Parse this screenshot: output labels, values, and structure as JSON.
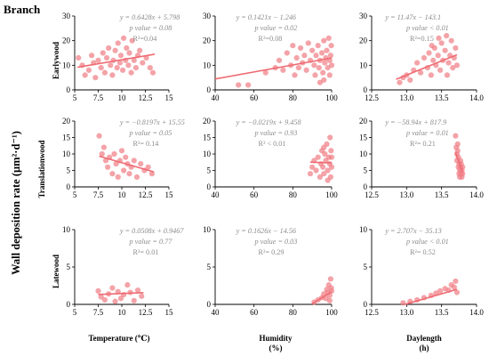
{
  "figure_label": "Branch",
  "y_axis_title": "Wall deposition rate (μm²·d⁻¹)",
  "x_axis_titles": [
    "Temperature (℃)",
    "Humidity",
    "Daylength"
  ],
  "x_axis_units": [
    "",
    "(%)",
    "(h)"
  ],
  "row_labels": [
    "Earlywood",
    "Translationwood",
    "Latewood"
  ],
  "colors": {
    "points": "#f07f86",
    "fit_line": "#ef6b73",
    "annotation": "#8c8c8c"
  },
  "chart_data": [
    {
      "type": "scatter",
      "panel": "earlywood-temperature",
      "xlim": [
        5,
        15
      ],
      "ylim": [
        0,
        30
      ],
      "xticks": [
        5,
        7.5,
        10,
        12.5,
        15
      ],
      "yticks": [
        0,
        10,
        20,
        30
      ],
      "xtick_labels": [
        "5",
        "7.5",
        "10",
        "12.5",
        "15"
      ],
      "ytick_labels": [
        "0",
        "10",
        "20",
        "30"
      ],
      "equation": "y = 0.6428x + 5.798",
      "p_text": "p value = 0.08",
      "r2_text": "R²=0.04",
      "fit": {
        "slope": 0.6428,
        "intercept": 5.798,
        "x_range": [
          5.3,
          13.5
        ]
      },
      "points": [
        [
          5.4,
          13
        ],
        [
          5.8,
          10
        ],
        [
          6.1,
          6
        ],
        [
          6.5,
          8
        ],
        [
          6.8,
          14
        ],
        [
          7.0,
          11
        ],
        [
          7.2,
          5
        ],
        [
          7.5,
          12
        ],
        [
          7.8,
          9
        ],
        [
          8.0,
          15
        ],
        [
          8.2,
          7
        ],
        [
          8.4,
          13
        ],
        [
          8.6,
          17
        ],
        [
          8.8,
          10
        ],
        [
          9.0,
          6
        ],
        [
          9.1,
          12
        ],
        [
          9.3,
          16
        ],
        [
          9.5,
          9
        ],
        [
          9.6,
          19
        ],
        [
          9.8,
          11
        ],
        [
          9.9,
          14
        ],
        [
          10.1,
          8
        ],
        [
          10.2,
          21
        ],
        [
          10.4,
          12
        ],
        [
          10.5,
          17
        ],
        [
          10.7,
          10
        ],
        [
          10.8,
          15
        ],
        [
          11.0,
          7
        ],
        [
          11.1,
          20
        ],
        [
          11.3,
          12
        ],
        [
          11.5,
          9
        ],
        [
          11.7,
          14
        ],
        [
          11.9,
          16
        ],
        [
          12.2,
          11
        ],
        [
          12.6,
          13
        ],
        [
          13.0,
          9
        ],
        [
          13.3,
          7
        ]
      ]
    },
    {
      "type": "scatter",
      "panel": "earlywood-humidity",
      "xlim": [
        40,
        100
      ],
      "ylim": [
        0,
        30
      ],
      "xticks": [
        40,
        60,
        80,
        100
      ],
      "yticks": [
        0,
        10,
        20,
        30
      ],
      "xtick_labels": [
        "40",
        "60",
        "80",
        "100"
      ],
      "ytick_labels": [
        "0",
        "10",
        "20",
        "30"
      ],
      "equation": "y = 0.1421x − 1.246",
      "p_text": "p value = 0.02",
      "r2_text": "R²=0.08",
      "fit": {
        "slope": 0.1421,
        "intercept": -1.246,
        "x_range": [
          40,
          100
        ]
      },
      "points": [
        [
          52,
          2
        ],
        [
          57,
          2
        ],
        [
          66,
          7
        ],
        [
          71,
          9
        ],
        [
          73,
          12
        ],
        [
          75,
          8
        ],
        [
          77,
          15
        ],
        [
          79,
          10
        ],
        [
          80,
          18
        ],
        [
          81,
          6
        ],
        [
          82,
          13
        ],
        [
          83,
          9
        ],
        [
          84,
          17
        ],
        [
          85,
          11
        ],
        [
          86,
          14
        ],
        [
          87,
          8
        ],
        [
          88,
          19
        ],
        [
          89,
          12
        ],
        [
          90,
          16
        ],
        [
          91,
          10
        ],
        [
          91.5,
          6
        ],
        [
          92,
          14
        ],
        [
          93,
          18
        ],
        [
          93.5,
          9
        ],
        [
          94,
          12
        ],
        [
          95,
          15
        ],
        [
          95.5,
          7
        ],
        [
          96,
          20
        ],
        [
          96.5,
          11
        ],
        [
          97,
          13
        ],
        [
          97.5,
          16
        ],
        [
          98,
          9
        ],
        [
          98.5,
          21
        ],
        [
          99,
          12
        ],
        [
          99.5,
          14
        ],
        [
          99.8,
          18
        ],
        [
          100,
          10
        ],
        [
          99,
          6
        ],
        [
          96,
          4
        ],
        [
          94,
          3
        ]
      ]
    },
    {
      "type": "scatter",
      "panel": "earlywood-daylength",
      "xlim": [
        12.5,
        14
      ],
      "ylim": [
        0,
        30
      ],
      "xticks": [
        12.5,
        13,
        13.5,
        14
      ],
      "yticks": [
        0,
        10,
        20,
        30
      ],
      "xtick_labels": [
        "12.5",
        "13.0",
        "13.5",
        "14.0"
      ],
      "ytick_labels": [
        "0",
        "10",
        "20",
        "30"
      ],
      "equation": "y = 11.47x − 143.1",
      "p_text": "p value < 0.01",
      "r2_text": "R²=0.15",
      "fit": {
        "slope": 11.47,
        "intercept": -143.1,
        "x_range": [
          12.85,
          13.72
        ]
      },
      "points": [
        [
          12.9,
          3
        ],
        [
          12.95,
          5
        ],
        [
          13.0,
          6
        ],
        [
          13.05,
          4
        ],
        [
          13.1,
          8
        ],
        [
          13.15,
          11
        ],
        [
          13.2,
          7
        ],
        [
          13.25,
          13
        ],
        [
          13.3,
          9
        ],
        [
          13.32,
          15
        ],
        [
          13.35,
          6
        ],
        [
          13.38,
          12
        ],
        [
          13.4,
          17
        ],
        [
          13.42,
          10
        ],
        [
          13.45,
          14
        ],
        [
          13.48,
          8
        ],
        [
          13.5,
          19
        ],
        [
          13.52,
          12
        ],
        [
          13.55,
          16
        ],
        [
          13.57,
          22
        ],
        [
          13.6,
          11
        ],
        [
          13.62,
          14
        ],
        [
          13.64,
          20
        ],
        [
          13.66,
          9
        ],
        [
          13.68,
          13
        ],
        [
          13.7,
          17
        ],
        [
          13.72,
          10
        ],
        [
          13.58,
          6
        ],
        [
          13.46,
          21
        ],
        [
          13.36,
          18
        ]
      ]
    },
    {
      "type": "scatter",
      "panel": "translationwood-temperature",
      "xlim": [
        5,
        15
      ],
      "ylim": [
        0,
        20
      ],
      "xticks": [
        5,
        7.5,
        10,
        12.5,
        15
      ],
      "yticks": [
        0,
        5,
        10,
        15,
        20
      ],
      "xtick_labels": [
        "5",
        "7.5",
        "10",
        "12.5",
        "15"
      ],
      "ytick_labels": [
        "0",
        "5",
        "10",
        "15",
        "20"
      ],
      "equation": "y = −0.8197x + 15.55",
      "p_text": "p value = 0.05",
      "r2_text": "R²= 0.14",
      "fit": {
        "slope": -0.8197,
        "intercept": 15.55,
        "x_range": [
          7.6,
          13.4
        ]
      },
      "points": [
        [
          7.6,
          15.5
        ],
        [
          7.9,
          10
        ],
        [
          8.1,
          12
        ],
        [
          8.3,
          8
        ],
        [
          8.5,
          6
        ],
        [
          8.7,
          9
        ],
        [
          9.0,
          4
        ],
        [
          9.2,
          10
        ],
        [
          9.4,
          7
        ],
        [
          9.6,
          3
        ],
        [
          9.8,
          8
        ],
        [
          10.0,
          11
        ],
        [
          10.2,
          5
        ],
        [
          10.4,
          9
        ],
        [
          10.6,
          7
        ],
        [
          10.8,
          4
        ],
        [
          11.0,
          6
        ],
        [
          11.3,
          8
        ],
        [
          11.6,
          3
        ],
        [
          12.0,
          7
        ],
        [
          12.4,
          5
        ],
        [
          12.8,
          6
        ],
        [
          13.2,
          4
        ]
      ]
    },
    {
      "type": "scatter",
      "panel": "translationwood-humidity",
      "xlim": [
        40,
        100
      ],
      "ylim": [
        0,
        20
      ],
      "xticks": [
        40,
        60,
        80,
        100
      ],
      "yticks": [
        0,
        5,
        10,
        15,
        20
      ],
      "xtick_labels": [
        "40",
        "60",
        "80",
        "100"
      ],
      "ytick_labels": [
        "0",
        "5",
        "10",
        "15",
        "20"
      ],
      "equation": "y = −0.0219x + 9.458",
      "p_text": "p value = 0.93",
      "r2_text": "R² < 0.01",
      "fit": {
        "slope": -0.0219,
        "intercept": 9.458,
        "x_range": [
          89,
          100
        ]
      },
      "points": [
        [
          89,
          4
        ],
        [
          90,
          6
        ],
        [
          91,
          8
        ],
        [
          92,
          5
        ],
        [
          93,
          9
        ],
        [
          94,
          3
        ],
        [
          94.5,
          7
        ],
        [
          95,
          11
        ],
        [
          95.5,
          6
        ],
        [
          96,
          4
        ],
        [
          96.5,
          10
        ],
        [
          97,
          8
        ],
        [
          97.5,
          13
        ],
        [
          98,
          5
        ],
        [
          98.5,
          9
        ],
        [
          99,
          7
        ],
        [
          99.2,
          15
        ],
        [
          99.5,
          3
        ],
        [
          99.7,
          11
        ],
        [
          100,
          6
        ],
        [
          100,
          9
        ],
        [
          98,
          2
        ],
        [
          96,
          12
        ]
      ]
    },
    {
      "type": "scatter",
      "panel": "translationwood-daylength",
      "xlim": [
        12.5,
        14
      ],
      "ylim": [
        0,
        20
      ],
      "xticks": [
        12.5,
        13,
        13.5,
        14
      ],
      "yticks": [
        0,
        5,
        10,
        15,
        20
      ],
      "xtick_labels": [
        "12.5",
        "13.0",
        "13.5",
        "14.0"
      ],
      "ytick_labels": [
        "0",
        "5",
        "10",
        "15",
        "20"
      ],
      "equation": "y = −58.94x + 817.9",
      "p_text": "p value = 0.01",
      "r2_text": "R²= 0.21",
      "fit": {
        "slope": -58.94,
        "intercept": 817.9,
        "x_range": [
          13.7,
          13.8
        ]
      },
      "points": [
        [
          13.7,
          15.5
        ],
        [
          13.71,
          12
        ],
        [
          13.72,
          10
        ],
        [
          13.72,
          8
        ],
        [
          13.73,
          11
        ],
        [
          13.74,
          6
        ],
        [
          13.74,
          9
        ],
        [
          13.75,
          4
        ],
        [
          13.75,
          7
        ],
        [
          13.76,
          3
        ],
        [
          13.76,
          5
        ],
        [
          13.77,
          8
        ],
        [
          13.77,
          6
        ],
        [
          13.78,
          4
        ],
        [
          13.78,
          7
        ],
        [
          13.79,
          5
        ],
        [
          13.79,
          3
        ],
        [
          13.8,
          6
        ],
        [
          13.8,
          4
        ],
        [
          13.73,
          13
        ]
      ]
    },
    {
      "type": "scatter",
      "panel": "latewood-temperature",
      "xlim": [
        5,
        15
      ],
      "ylim": [
        0,
        10
      ],
      "xticks": [
        5,
        7.5,
        10,
        12.5,
        15
      ],
      "yticks": [
        0,
        5,
        10
      ],
      "xtick_labels": [
        "5",
        "7.5",
        "10",
        "12.5",
        "15"
      ],
      "ytick_labels": [
        "0",
        "5",
        "10"
      ],
      "equation": "y = 0.0508x + 0.9467",
      "p_text": "p value = 0.77",
      "r2_text": "R²= 0.01",
      "fit": {
        "slope": 0.0508,
        "intercept": 0.9467,
        "x_range": [
          7.5,
          12.3
        ]
      },
      "points": [
        [
          7.5,
          1.8
        ],
        [
          7.8,
          1
        ],
        [
          8.2,
          0.6
        ],
        [
          8.6,
          1.4
        ],
        [
          9.0,
          2.2
        ],
        [
          9.3,
          0.4
        ],
        [
          9.6,
          1.7
        ],
        [
          9.9,
          0.8
        ],
        [
          10.2,
          1.3
        ],
        [
          10.6,
          2.6
        ],
        [
          10.9,
          1.6
        ],
        [
          11.3,
          0.5
        ],
        [
          11.7,
          1.9
        ],
        [
          12.1,
          1.1
        ]
      ]
    },
    {
      "type": "scatter",
      "panel": "latewood-humidity",
      "xlim": [
        40,
        100
      ],
      "ylim": [
        0,
        10
      ],
      "xticks": [
        40,
        60,
        80,
        100
      ],
      "yticks": [
        0,
        5,
        10
      ],
      "xtick_labels": [
        "40",
        "60",
        "80",
        "100"
      ],
      "ytick_labels": [
        "0",
        "5",
        "10"
      ],
      "equation": "y = 0.1626x − 14.56",
      "p_text": "p value = 0.03",
      "r2_text": "R²= 0.29",
      "fit": {
        "slope": 0.1626,
        "intercept": -14.56,
        "x_range": [
          90,
          100
        ]
      },
      "points": [
        [
          91,
          0.3
        ],
        [
          93,
          0.6
        ],
        [
          95,
          0.9
        ],
        [
          96,
          1.4
        ],
        [
          97,
          0.8
        ],
        [
          97.5,
          2
        ],
        [
          98,
          1.6
        ],
        [
          98.5,
          2.6
        ],
        [
          99,
          1.2
        ],
        [
          99.5,
          3.4
        ],
        [
          99.8,
          2.2
        ],
        [
          100,
          1.8
        ],
        [
          99,
          0.5
        ]
      ]
    },
    {
      "type": "scatter",
      "panel": "latewood-daylength",
      "xlim": [
        12.5,
        14
      ],
      "ylim": [
        0,
        10
      ],
      "xticks": [
        12.5,
        13,
        13.5,
        14
      ],
      "yticks": [
        0,
        5,
        10
      ],
      "xtick_labels": [
        "12.5",
        "13.0",
        "13.5",
        "14.0"
      ],
      "ytick_labels": [
        "0",
        "5",
        "10"
      ],
      "equation": "y = 2.707x − 35.13",
      "p_text": "p value < 0.01",
      "r2_text": "R²= 0.52",
      "fit": {
        "slope": 2.707,
        "intercept": -35.13,
        "x_range": [
          12.98,
          13.72
        ]
      },
      "points": [
        [
          12.95,
          0.2
        ],
        [
          13.05,
          0.4
        ],
        [
          13.15,
          0.6
        ],
        [
          13.25,
          0.9
        ],
        [
          13.35,
          1.2
        ],
        [
          13.42,
          1.5
        ],
        [
          13.48,
          1.8
        ],
        [
          13.55,
          2.1
        ],
        [
          13.6,
          1.9
        ],
        [
          13.64,
          2.6
        ],
        [
          13.68,
          2.3
        ],
        [
          13.7,
          3.1
        ],
        [
          13.72,
          1.6
        ]
      ]
    }
  ]
}
